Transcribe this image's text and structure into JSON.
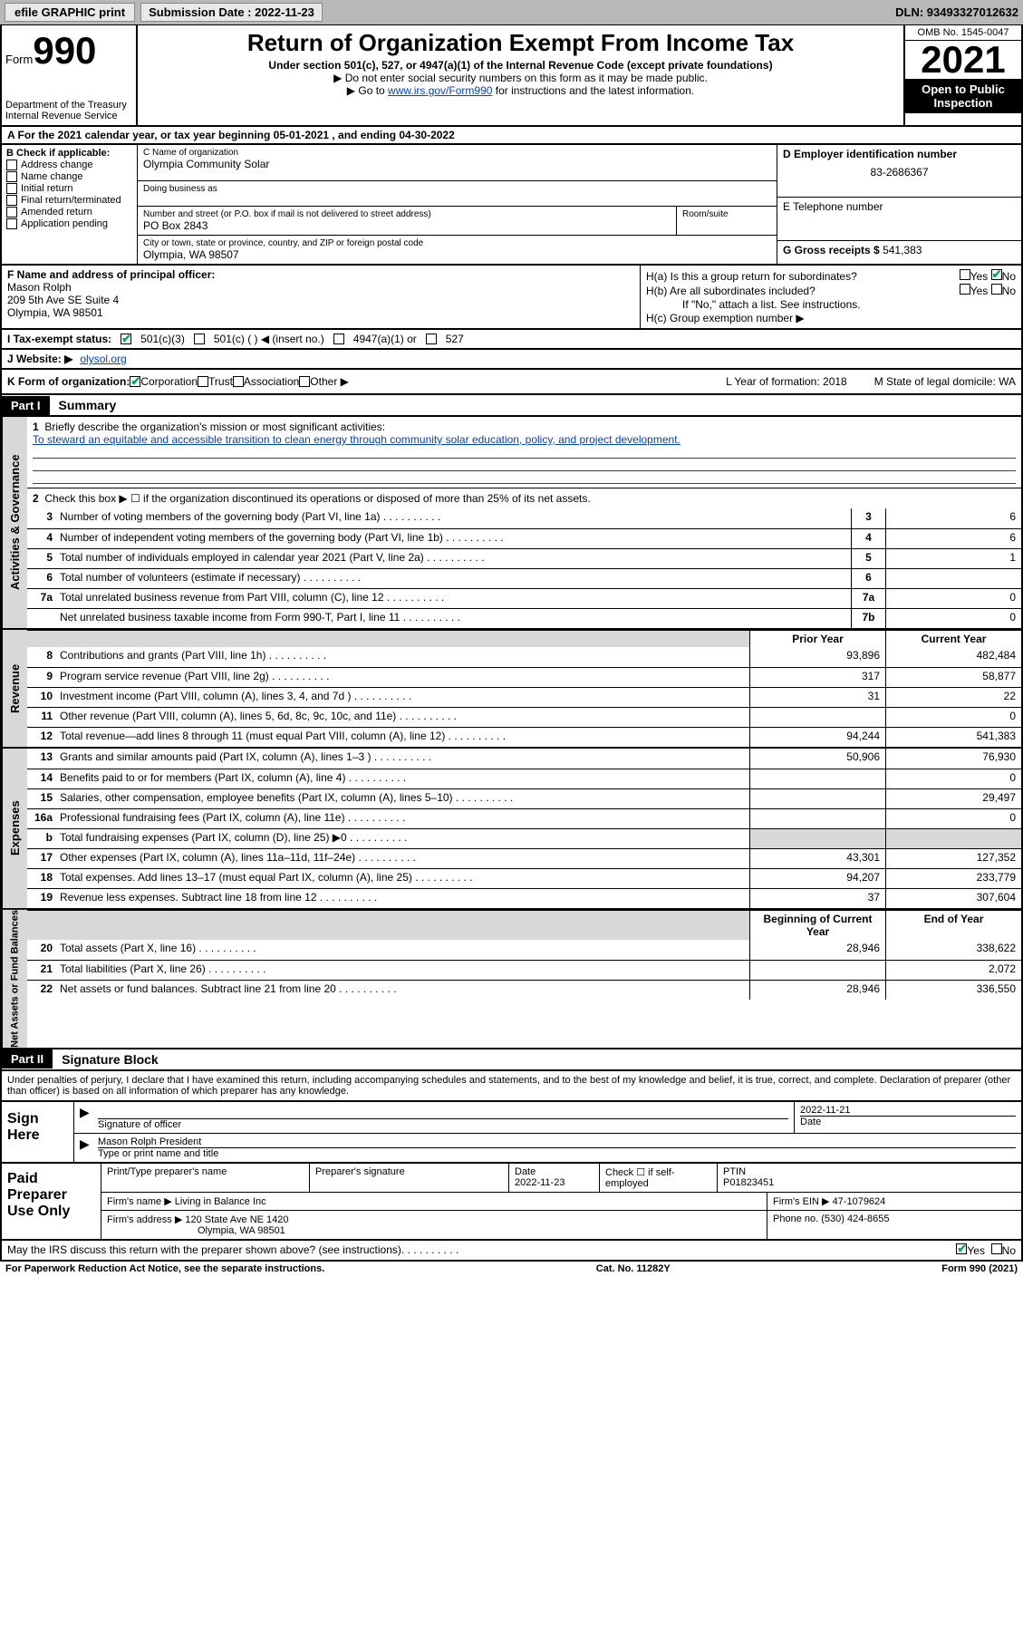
{
  "topbar": {
    "efile": "efile GRAPHIC print",
    "sub_label": "Submission Date : 2022-11-23",
    "dln": "DLN: 93493327012632"
  },
  "header": {
    "form_label": "Form",
    "form_num": "990",
    "dept": "Department of the Treasury",
    "irs": "Internal Revenue Service",
    "title": "Return of Organization Exempt From Income Tax",
    "sub1": "Under section 501(c), 527, or 4947(a)(1) of the Internal Revenue Code (except private foundations)",
    "note1": "▶ Do not enter social security numbers on this form as it may be made public.",
    "note2_pre": "▶ Go to ",
    "note2_link": "www.irs.gov/Form990",
    "note2_post": " for instructions and the latest information.",
    "omb": "OMB No. 1545-0047",
    "year": "2021",
    "inspection": "Open to Public Inspection"
  },
  "row_a": "A For the 2021 calendar year, or tax year beginning 05-01-2021   , and ending 04-30-2022",
  "col_b": {
    "hdr": "B Check if applicable:",
    "items": [
      "Address change",
      "Name change",
      "Initial return",
      "Final return/terminated",
      "Amended return",
      "Application pending"
    ]
  },
  "col_c": {
    "name_label": "C Name of organization",
    "name": "Olympia Community Solar",
    "dba_label": "Doing business as",
    "street_label": "Number and street (or P.O. box if mail is not delivered to street address)",
    "street": "PO Box 2843",
    "room_label": "Room/suite",
    "city_label": "City or town, state or province, country, and ZIP or foreign postal code",
    "city": "Olympia, WA  98507"
  },
  "col_d": {
    "label": "D Employer identification number",
    "val": "83-2686367"
  },
  "col_e": {
    "label": "E Telephone number"
  },
  "col_g": {
    "label": "G Gross receipts $",
    "val": "541,383"
  },
  "col_f": {
    "label": "F Name and address of principal officer:",
    "name": "Mason Rolph",
    "addr1": "209 5th Ave SE Suite 4",
    "addr2": "Olympia, WA  98501"
  },
  "col_h": {
    "ha": "H(a)  Is this a group return for subordinates?",
    "hb": "H(b)  Are all subordinates included?",
    "hb_note": "If \"No,\" attach a list. See instructions.",
    "hc": "H(c)  Group exemption number ▶"
  },
  "row_i": {
    "label": "I   Tax-exempt status:",
    "opt1": "501(c)(3)",
    "opt2": "501(c) (  ) ◀ (insert no.)",
    "opt3": "4947(a)(1) or",
    "opt4": "527"
  },
  "row_j": {
    "label": "J   Website: ▶",
    "val": "olysol.org"
  },
  "row_k": {
    "label": "K Form of organization:",
    "opts": [
      "Corporation",
      "Trust",
      "Association",
      "Other ▶"
    ],
    "l": "L Year of formation: 2018",
    "m": "M State of legal domicile: WA"
  },
  "part1": {
    "hdr": "Part I",
    "title": "Summary",
    "line1": "Briefly describe the organization's mission or most significant activities:",
    "mission": "To steward an equitable and accessible transition to clean energy through community solar education, policy, and project development.",
    "line2": "Check this box ▶ ☐  if the organization discontinued its operations or disposed of more than 25% of its net assets.",
    "lines_ag": [
      {
        "n": "3",
        "d": "Number of voting members of the governing body (Part VI, line 1a)",
        "b": "3",
        "v": "6"
      },
      {
        "n": "4",
        "d": "Number of independent voting members of the governing body (Part VI, line 1b)",
        "b": "4",
        "v": "6"
      },
      {
        "n": "5",
        "d": "Total number of individuals employed in calendar year 2021 (Part V, line 2a)",
        "b": "5",
        "v": "1"
      },
      {
        "n": "6",
        "d": "Total number of volunteers (estimate if necessary)",
        "b": "6",
        "v": ""
      },
      {
        "n": "7a",
        "d": "Total unrelated business revenue from Part VIII, column (C), line 12",
        "b": "7a",
        "v": "0"
      },
      {
        "n": "",
        "d": "Net unrelated business taxable income from Form 990-T, Part I, line 11",
        "b": "7b",
        "v": "0"
      }
    ],
    "rev_hdr": {
      "c1": "Prior Year",
      "c2": "Current Year"
    },
    "lines_rev": [
      {
        "n": "8",
        "d": "Contributions and grants (Part VIII, line 1h)",
        "p": "93,896",
        "c": "482,484"
      },
      {
        "n": "9",
        "d": "Program service revenue (Part VIII, line 2g)",
        "p": "317",
        "c": "58,877"
      },
      {
        "n": "10",
        "d": "Investment income (Part VIII, column (A), lines 3, 4, and 7d )",
        "p": "31",
        "c": "22"
      },
      {
        "n": "11",
        "d": "Other revenue (Part VIII, column (A), lines 5, 6d, 8c, 9c, 10c, and 11e)",
        "p": "",
        "c": "0"
      },
      {
        "n": "12",
        "d": "Total revenue—add lines 8 through 11 (must equal Part VIII, column (A), line 12)",
        "p": "94,244",
        "c": "541,383"
      }
    ],
    "lines_exp": [
      {
        "n": "13",
        "d": "Grants and similar amounts paid (Part IX, column (A), lines 1–3 )",
        "p": "50,906",
        "c": "76,930"
      },
      {
        "n": "14",
        "d": "Benefits paid to or for members (Part IX, column (A), line 4)",
        "p": "",
        "c": "0"
      },
      {
        "n": "15",
        "d": "Salaries, other compensation, employee benefits (Part IX, column (A), lines 5–10)",
        "p": "",
        "c": "29,497"
      },
      {
        "n": "16a",
        "d": "Professional fundraising fees (Part IX, column (A), line 11e)",
        "p": "",
        "c": "0"
      },
      {
        "n": "b",
        "d": "Total fundraising expenses (Part IX, column (D), line 25) ▶0",
        "p": "__shade__",
        "c": "__shade__"
      },
      {
        "n": "17",
        "d": "Other expenses (Part IX, column (A), lines 11a–11d, 11f–24e)",
        "p": "43,301",
        "c": "127,352"
      },
      {
        "n": "18",
        "d": "Total expenses. Add lines 13–17 (must equal Part IX, column (A), line 25)",
        "p": "94,207",
        "c": "233,779"
      },
      {
        "n": "19",
        "d": "Revenue less expenses. Subtract line 18 from line 12",
        "p": "37",
        "c": "307,604"
      }
    ],
    "na_hdr": {
      "c1": "Beginning of Current Year",
      "c2": "End of Year"
    },
    "lines_na": [
      {
        "n": "20",
        "d": "Total assets (Part X, line 16)",
        "p": "28,946",
        "c": "338,622"
      },
      {
        "n": "21",
        "d": "Total liabilities (Part X, line 26)",
        "p": "",
        "c": "2,072"
      },
      {
        "n": "22",
        "d": "Net assets or fund balances. Subtract line 21 from line 20",
        "p": "28,946",
        "c": "336,550"
      }
    ]
  },
  "part2": {
    "hdr": "Part II",
    "title": "Signature Block",
    "decl": "Under penalties of perjury, I declare that I have examined this return, including accompanying schedules and statements, and to the best of my knowledge and belief, it is true, correct, and complete. Declaration of preparer (other than officer) is based on all information of which preparer has any knowledge.",
    "sign_here": "Sign Here",
    "sig_officer": "Signature of officer",
    "sig_date": "2022-11-21",
    "date_lbl": "Date",
    "name_title": "Mason Rolph  President",
    "name_title_lbl": "Type or print name and title",
    "paid": "Paid Preparer Use Only",
    "prep_name_lbl": "Print/Type preparer's name",
    "prep_sig_lbl": "Preparer's signature",
    "prep_date_lbl": "Date",
    "prep_date": "2022-11-23",
    "check_lbl": "Check ☐ if self-employed",
    "ptin_lbl": "PTIN",
    "ptin": "P01823451",
    "firm_name_lbl": "Firm's name    ▶",
    "firm_name": "Living in Balance Inc",
    "firm_ein_lbl": "Firm's EIN ▶",
    "firm_ein": "47-1079624",
    "firm_addr_lbl": "Firm's address ▶",
    "firm_addr1": "120 State Ave NE 1420",
    "firm_addr2": "Olympia, WA  98501",
    "phone_lbl": "Phone no.",
    "phone": "(530) 424-8655",
    "discuss": "May the IRS discuss this return with the preparer shown above? (see instructions)"
  },
  "footer": {
    "l": "For Paperwork Reduction Act Notice, see the separate instructions.",
    "m": "Cat. No. 11282Y",
    "r": "Form 990 (2021)"
  }
}
